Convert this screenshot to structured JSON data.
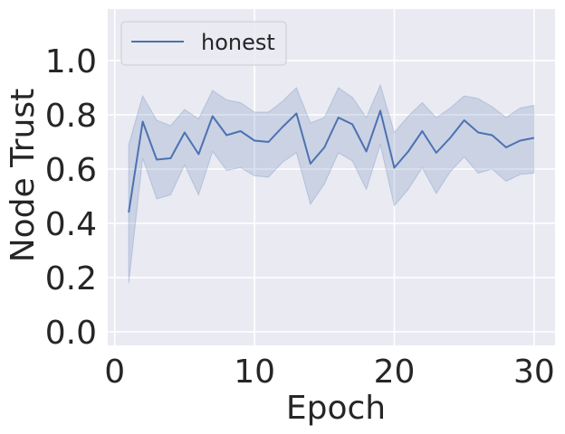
{
  "chart_data": {
    "type": "line",
    "title": "",
    "xlabel": "Epoch",
    "ylabel": "Node Trust",
    "xlim": [
      -0.5,
      31.5
    ],
    "ylim": [
      -0.05,
      1.19
    ],
    "xticks": [
      0,
      10,
      20,
      30
    ],
    "xtick_labels": [
      "0",
      "10",
      "20",
      "30"
    ],
    "yticks": [
      0.0,
      0.2,
      0.4,
      0.6,
      0.8,
      1.0
    ],
    "ytick_labels": [
      "0.0",
      "0.2",
      "0.4",
      "0.6",
      "0.8",
      "1.0"
    ],
    "grid": true,
    "legend_position": "top-left",
    "colors": {
      "background": "#eaeaf2",
      "grid": "#ffffff",
      "line": "#4c72b0",
      "band": "#4c72b0"
    },
    "x": [
      1,
      2,
      3,
      4,
      5,
      6,
      7,
      8,
      9,
      10,
      11,
      12,
      13,
      14,
      15,
      16,
      17,
      18,
      19,
      20,
      21,
      22,
      23,
      24,
      25,
      26,
      27,
      28,
      29,
      30
    ],
    "series": [
      {
        "name": "honest",
        "values": [
          0.44,
          0.775,
          0.635,
          0.64,
          0.735,
          0.655,
          0.795,
          0.725,
          0.74,
          0.705,
          0.7,
          0.755,
          0.805,
          0.62,
          0.68,
          0.79,
          0.765,
          0.665,
          0.815,
          0.605,
          0.665,
          0.74,
          0.66,
          0.715,
          0.78,
          0.735,
          0.725,
          0.68,
          0.705,
          0.715
        ],
        "lower": [
          0.18,
          0.64,
          0.49,
          0.505,
          0.615,
          0.505,
          0.665,
          0.595,
          0.605,
          0.575,
          0.57,
          0.625,
          0.66,
          0.47,
          0.545,
          0.66,
          0.63,
          0.525,
          0.69,
          0.465,
          0.525,
          0.605,
          0.51,
          0.59,
          0.645,
          0.585,
          0.6,
          0.555,
          0.58,
          0.585
        ],
        "upper": [
          0.69,
          0.87,
          0.78,
          0.76,
          0.82,
          0.785,
          0.89,
          0.855,
          0.845,
          0.81,
          0.81,
          0.85,
          0.9,
          0.77,
          0.79,
          0.9,
          0.865,
          0.79,
          0.91,
          0.735,
          0.795,
          0.845,
          0.79,
          0.825,
          0.87,
          0.86,
          0.83,
          0.79,
          0.825,
          0.835
        ]
      }
    ]
  }
}
